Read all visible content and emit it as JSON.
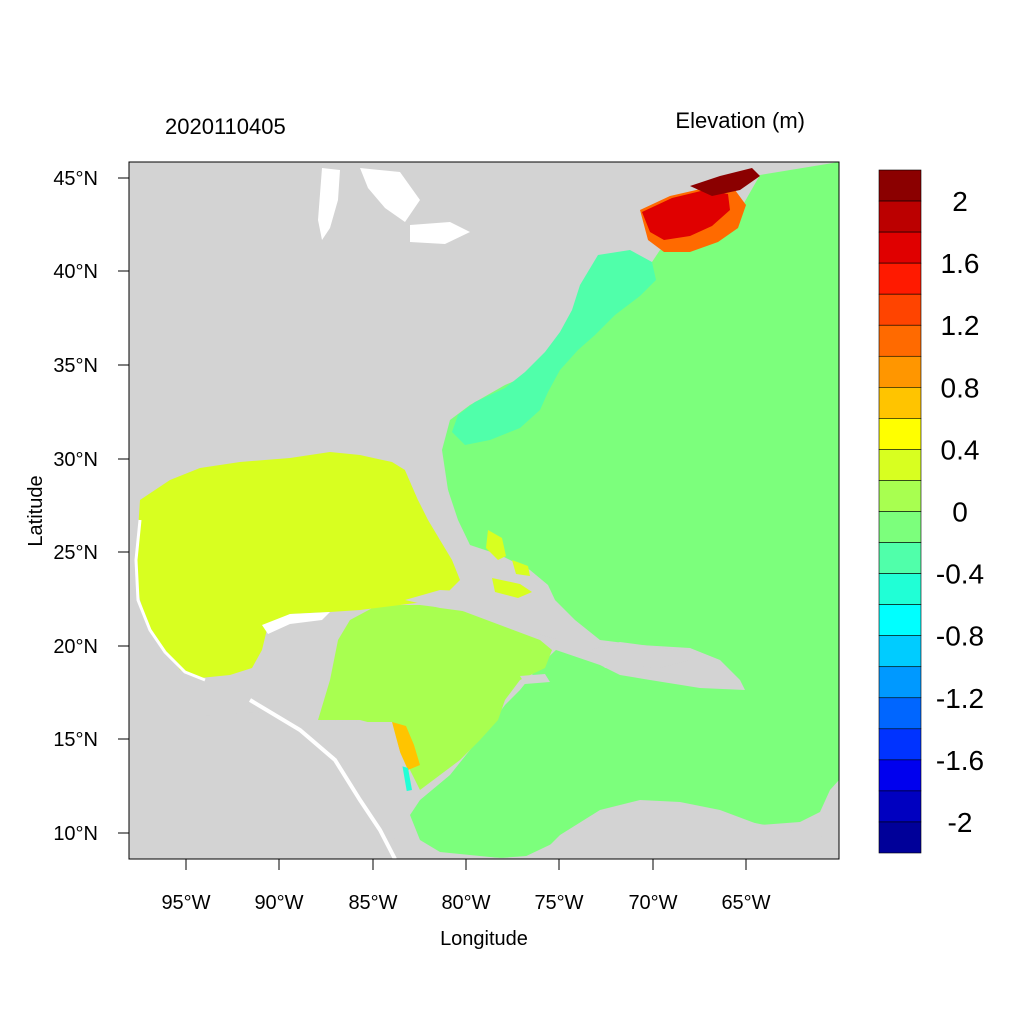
{
  "title_left": "2020110405",
  "title_right": "Elevation (m)",
  "x_axis_label": "Longitude",
  "y_axis_label": "Latitude",
  "lon_ticks": [
    "95°W",
    "90°W",
    "85°W",
    "80°W",
    "75°W",
    "70°W",
    "65°W"
  ],
  "lat_ticks": [
    "45°N",
    "40°N",
    "35°N",
    "30°N",
    "25°N",
    "20°N",
    "15°N",
    "10°N"
  ],
  "colorbar": {
    "labels": [
      "2",
      "1.6",
      "1.2",
      "0.8",
      "0.4",
      "0",
      "-0.4",
      "-0.8",
      "-1.2",
      "-1.6",
      "-2"
    ],
    "colors_top_to_bottom": [
      "#8b0000",
      "#bb0000",
      "#e00000",
      "#ff1a00",
      "#ff4400",
      "#ff6a00",
      "#ff9600",
      "#ffc400",
      "#ffff00",
      "#d8ff20",
      "#a8ff50",
      "#7cff7c",
      "#50ffaa",
      "#20ffd6",
      "#00ffff",
      "#00ccff",
      "#0099ff",
      "#0066ff",
      "#0033ff",
      "#0000ee",
      "#0000c0",
      "#000099"
    ]
  },
  "colors": {
    "land": "#d3d3d3",
    "ocean": "#7cff7c",
    "gulf": "#d8ff20",
    "caribbean_west": "#a8ff50",
    "shelf": "#50ffaa",
    "surge": "#e00000"
  }
}
